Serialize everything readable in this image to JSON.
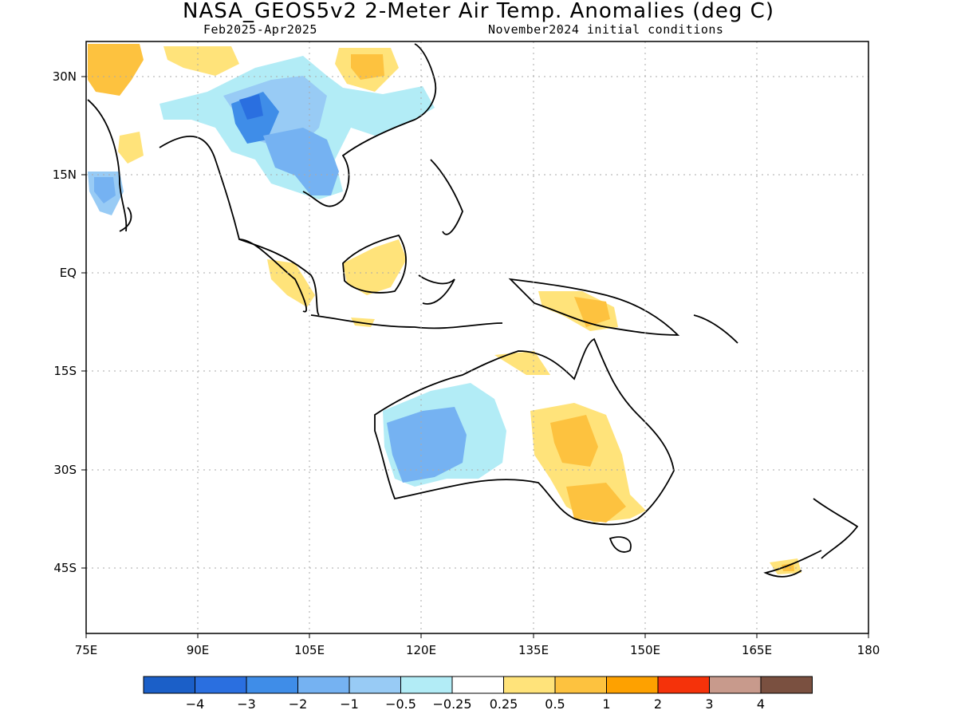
{
  "title": "NASA_GEOS5v2 2-Meter Air Temp. Anomalies (deg C)",
  "subtitle_left": "Feb2025-Apr2025",
  "subtitle_right": "November2024 initial conditions",
  "map": {
    "lon_range": [
      75,
      180
    ],
    "lat_range": [
      -50,
      35
    ],
    "x_ticks": [
      "75E",
      "90E",
      "105E",
      "120E",
      "135E",
      "150E",
      "165E",
      "180"
    ],
    "y_ticks": [
      "30N",
      "15N",
      "EQ",
      "15S",
      "30S",
      "45S"
    ]
  },
  "colorbar": {
    "colors": [
      "#1b5fc8",
      "#2a6fe0",
      "#3f8de8",
      "#75b2f2",
      "#98cbf5",
      "#b2ecf6",
      "#ffffff",
      "#ffe37a",
      "#fdc23f",
      "#fea100",
      "#f5320a",
      "#c89a8c",
      "#7a5040"
    ],
    "labels": [
      "-4",
      "-3",
      "-2",
      "-1",
      "-0.5",
      "-0.25",
      "0.25",
      "0.5",
      "1",
      "2",
      "3",
      "4"
    ]
  }
}
